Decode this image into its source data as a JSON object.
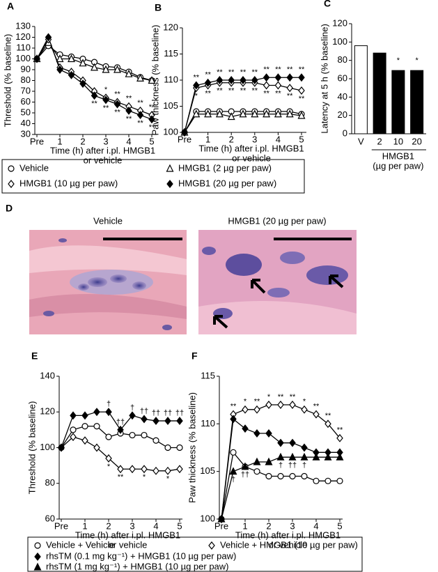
{
  "chart_data": [
    {
      "type": "line",
      "panel": "A",
      "ylabel": "Threshold (% baseline)",
      "xlabel": [
        "Time (h) after i.pl. HMGB1",
        "or vehicle"
      ],
      "x": [
        0,
        0.5,
        1,
        1.5,
        2,
        2.5,
        3,
        3.5,
        4,
        4.5,
        5
      ],
      "xlim": [
        0,
        5
      ],
      "xticks": [
        {
          "value": 0,
          "label": "Pre"
        },
        1,
        2,
        3,
        4,
        5
      ],
      "ylim": [
        30,
        130
      ],
      "yticks": [
        30,
        40,
        50,
        60,
        70,
        80,
        90,
        100,
        110,
        120,
        130
      ],
      "series": [
        {
          "marker": "circle",
          "filled": false,
          "values": [
            100,
            112,
            104,
            102,
            100,
            97,
            93,
            92,
            88,
            83,
            80
          ]
        },
        {
          "marker": "triangle",
          "filled": false,
          "values": [
            100,
            115,
            100,
            100,
            96,
            92,
            90,
            90,
            86,
            82,
            80
          ]
        },
        {
          "marker": "diamond",
          "filled": false,
          "values": [
            100,
            118,
            92,
            88,
            80,
            70,
            64,
            60,
            56,
            52,
            48
          ]
        },
        {
          "marker": "diamond",
          "filled": true,
          "values": [
            100,
            120,
            90,
            85,
            77,
            66,
            62,
            58,
            52,
            48,
            44
          ]
        }
      ],
      "annotations": [
        {
          "series": 2,
          "index": 6,
          "text": "*"
        },
        {
          "series": 2,
          "index": 7,
          "text": "**"
        },
        {
          "series": 2,
          "index": 8,
          "text": "**"
        },
        {
          "series": 2,
          "index": 9,
          "text": "**"
        },
        {
          "series": 2,
          "index": 10,
          "text": "**"
        },
        {
          "series": 3,
          "index": 5,
          "text": "**"
        },
        {
          "series": 3,
          "index": 6,
          "text": "**"
        },
        {
          "series": 3,
          "index": 7,
          "text": "**"
        },
        {
          "series": 3,
          "index": 8,
          "text": "**"
        },
        {
          "series": 3,
          "index": 9,
          "text": "**"
        },
        {
          "series": 3,
          "index": 10,
          "text": "**"
        }
      ]
    },
    {
      "type": "line",
      "panel": "B",
      "ylabel": "Paw thickness (% baseline)",
      "xlabel": [
        "Time (h) after i.pl. HMGB1",
        "or vehicle"
      ],
      "x": [
        0,
        0.5,
        1,
        1.5,
        2,
        2.5,
        3,
        3.5,
        4,
        4.5,
        5
      ],
      "xlim": [
        0,
        5
      ],
      "xticks": [
        {
          "value": 0,
          "label": "Pre"
        },
        1,
        2,
        3,
        4,
        5
      ],
      "ylim": [
        100,
        120
      ],
      "yticks": [
        100,
        105,
        110,
        115,
        120
      ],
      "series": [
        {
          "marker": "circle",
          "filled": false,
          "values": [
            100,
            104,
            104,
            104,
            104,
            104,
            104,
            104,
            104,
            104,
            103.5
          ]
        },
        {
          "marker": "triangle",
          "filled": false,
          "values": [
            100,
            103.5,
            103.5,
            103.5,
            103,
            103.5,
            103.5,
            103.5,
            103.5,
            103.5,
            103.2
          ]
        },
        {
          "marker": "diamond",
          "filled": false,
          "values": [
            100,
            108.5,
            109,
            109.5,
            109.5,
            109.5,
            109.5,
            109,
            109,
            108.5,
            108
          ]
        },
        {
          "marker": "diamond",
          "filled": true,
          "values": [
            100,
            109,
            109.5,
            110,
            110,
            110,
            110,
            110.5,
            110.5,
            110.5,
            110.5
          ]
        }
      ],
      "annotations": [
        {
          "series": 3,
          "index": 1,
          "text": "**"
        },
        {
          "series": 3,
          "index": 2,
          "text": "**"
        },
        {
          "series": 3,
          "index": 3,
          "text": "**"
        },
        {
          "series": 3,
          "index": 4,
          "text": "**"
        },
        {
          "series": 3,
          "index": 5,
          "text": "**"
        },
        {
          "series": 3,
          "index": 6,
          "text": "**"
        },
        {
          "series": 3,
          "index": 7,
          "text": "**"
        },
        {
          "series": 3,
          "index": 8,
          "text": "**"
        },
        {
          "series": 3,
          "index": 9,
          "text": "**"
        },
        {
          "series": 3,
          "index": 10,
          "text": "**"
        },
        {
          "series": 2,
          "index": 1,
          "text": "*"
        },
        {
          "series": 2,
          "index": 2,
          "text": "**"
        },
        {
          "series": 2,
          "index": 3,
          "text": "**"
        },
        {
          "series": 2,
          "index": 4,
          "text": "**"
        },
        {
          "series": 2,
          "index": 5,
          "text": "**"
        },
        {
          "series": 2,
          "index": 6,
          "text": "**"
        },
        {
          "series": 2,
          "index": 7,
          "text": "**"
        },
        {
          "series": 2,
          "index": 8,
          "text": "**"
        },
        {
          "series": 2,
          "index": 9,
          "text": "**"
        },
        {
          "series": 2,
          "index": 10,
          "text": "**"
        }
      ]
    },
    {
      "type": "bar",
      "panel": "C",
      "ylabel": "Latency at 5 h (% baseline)",
      "group_label": [
        "HMGB1",
        "(µg per paw)"
      ],
      "categories": [
        "V",
        "2",
        "10",
        "20"
      ],
      "values": [
        96,
        88,
        69,
        69
      ],
      "colors": [
        "#ffffff",
        "#000000",
        "#000000",
        "#000000"
      ],
      "ylim": [
        0,
        120
      ],
      "yticks": [
        0,
        20,
        40,
        60,
        80,
        100,
        120
      ],
      "annotations": [
        {
          "index": 2,
          "text": "*"
        },
        {
          "index": 3,
          "text": "*"
        }
      ]
    },
    {
      "type": "line",
      "panel": "E",
      "ylabel": "Threshold (% baseline)",
      "xlabel": [
        "Time (h) after i.pl. HMGB1",
        "or vehicle"
      ],
      "x": [
        0,
        0.5,
        1,
        1.5,
        2,
        2.5,
        3,
        3.5,
        4,
        4.5,
        5
      ],
      "xlim": [
        0,
        5
      ],
      "xticks": [
        {
          "value": 0,
          "label": "Pre"
        },
        1,
        2,
        3,
        4,
        5
      ],
      "ylim": [
        60,
        140
      ],
      "yticks": [
        60,
        80,
        100,
        120,
        140
      ],
      "series": [
        {
          "marker": "circle",
          "filled": false,
          "values": [
            100,
            110,
            112,
            112,
            106,
            108,
            107,
            107,
            104,
            100,
            100
          ]
        },
        {
          "marker": "diamond",
          "filled": false,
          "values": [
            100,
            106,
            104,
            100,
            94,
            88,
            88,
            88,
            87,
            87,
            88
          ]
        },
        {
          "marker": "diamond",
          "filled": true,
          "values": [
            100,
            118,
            118,
            120,
            120,
            110,
            118,
            116,
            115,
            115,
            115
          ]
        }
      ],
      "annotations": [
        {
          "series": 2,
          "index": 4,
          "text": "†"
        },
        {
          "series": 2,
          "index": 5,
          "text": "††"
        },
        {
          "series": 2,
          "index": 6,
          "text": "†"
        },
        {
          "series": 2,
          "index": 7,
          "text": "††"
        },
        {
          "series": 2,
          "index": 8,
          "text": "††"
        },
        {
          "series": 2,
          "index": 9,
          "text": "††"
        },
        {
          "series": 2,
          "index": 10,
          "text": "††"
        },
        {
          "series": 1,
          "index": 4,
          "text": "*"
        },
        {
          "series": 1,
          "index": 5,
          "text": "**"
        },
        {
          "series": 1,
          "index": 7,
          "text": "*"
        },
        {
          "series": 1,
          "index": 9,
          "text": "*"
        }
      ]
    },
    {
      "type": "line",
      "panel": "F",
      "ylabel": "Paw thickness (% baseline)",
      "xlabel": [
        "Time (h) after i.pl. HMGB1",
        "or vehicle"
      ],
      "x": [
        0,
        0.5,
        1,
        1.5,
        2,
        2.5,
        3,
        3.5,
        4,
        4.5,
        5
      ],
      "xlim": [
        0,
        5
      ],
      "xticks": [
        {
          "value": 0,
          "label": "Pre"
        },
        1,
        2,
        3,
        4,
        5
      ],
      "ylim": [
        100,
        115
      ],
      "yticks": [
        100,
        105,
        110,
        115
      ],
      "series": [
        {
          "marker": "circle",
          "filled": false,
          "values": [
            100,
            107,
            105.5,
            105,
            104.5,
            104.5,
            104.5,
            104.5,
            104,
            104,
            104
          ]
        },
        {
          "marker": "diamond",
          "filled": false,
          "values": [
            100,
            111,
            111.5,
            111.5,
            112,
            112,
            112,
            111.5,
            111,
            110,
            108.5
          ]
        },
        {
          "marker": "diamond",
          "filled": true,
          "values": [
            100,
            110.5,
            109.5,
            109,
            109,
            108,
            108,
            107.5,
            107,
            107,
            107
          ]
        },
        {
          "marker": "triangle",
          "filled": true,
          "values": [
            100,
            105,
            105.5,
            106,
            106,
            106.5,
            106.5,
            106.5,
            106.5,
            106.5,
            106.5
          ]
        }
      ],
      "annotations": [
        {
          "series": 1,
          "index": 1,
          "text": "**"
        },
        {
          "series": 1,
          "index": 2,
          "text": "*"
        },
        {
          "series": 1,
          "index": 3,
          "text": "**"
        },
        {
          "series": 1,
          "index": 4,
          "text": "*"
        },
        {
          "series": 1,
          "index": 5,
          "text": "**"
        },
        {
          "series": 1,
          "index": 6,
          "text": "**"
        },
        {
          "series": 1,
          "index": 7,
          "text": "*"
        },
        {
          "series": 1,
          "index": 8,
          "text": "**"
        },
        {
          "series": 1,
          "index": 9,
          "text": "**"
        },
        {
          "series": 1,
          "index": 10,
          "text": "**"
        },
        {
          "series": 3,
          "index": 1,
          "text": "†"
        },
        {
          "series": 3,
          "index": 2,
          "text": "††"
        },
        {
          "series": 3,
          "index": 5,
          "text": "†"
        },
        {
          "series": 3,
          "index": 6,
          "text": "††"
        },
        {
          "series": 3,
          "index": 7,
          "text": "†"
        }
      ]
    }
  ],
  "figure_d": {
    "label": "D",
    "images": [
      {
        "title": "Vehicle"
      },
      {
        "title": "HMGB1 (20 µg per paw)"
      }
    ]
  },
  "legends": [
    {
      "entries": [
        {
          "name": "Vehicle",
          "marker": "circle",
          "filled": false
        },
        {
          "name": "HMGB1 (2 µg per paw)",
          "marker": "triangle",
          "filled": false
        },
        {
          "name": "HMGB1 (10 µg per paw)",
          "marker": "diamond",
          "filled": false
        },
        {
          "name": "HMGB1 (20 µg per paw)",
          "marker": "diamond",
          "filled": true
        }
      ]
    },
    {
      "entries": [
        {
          "name": "Vehicle + Vehicle",
          "marker": "circle",
          "filled": false
        },
        {
          "name": "Vehicle + HMGB1 (10 µg per paw)",
          "marker": "diamond",
          "filled": false
        },
        {
          "name": "rhsTM (0.1 mg kg⁻¹) + HMGB1 (10 µg per paw)",
          "marker": "diamond",
          "filled": true
        },
        {
          "name": "rhsTM (1 mg kg⁻¹) + HMGB1 (10 µg per paw)",
          "marker": "triangle",
          "filled": true
        }
      ]
    }
  ]
}
